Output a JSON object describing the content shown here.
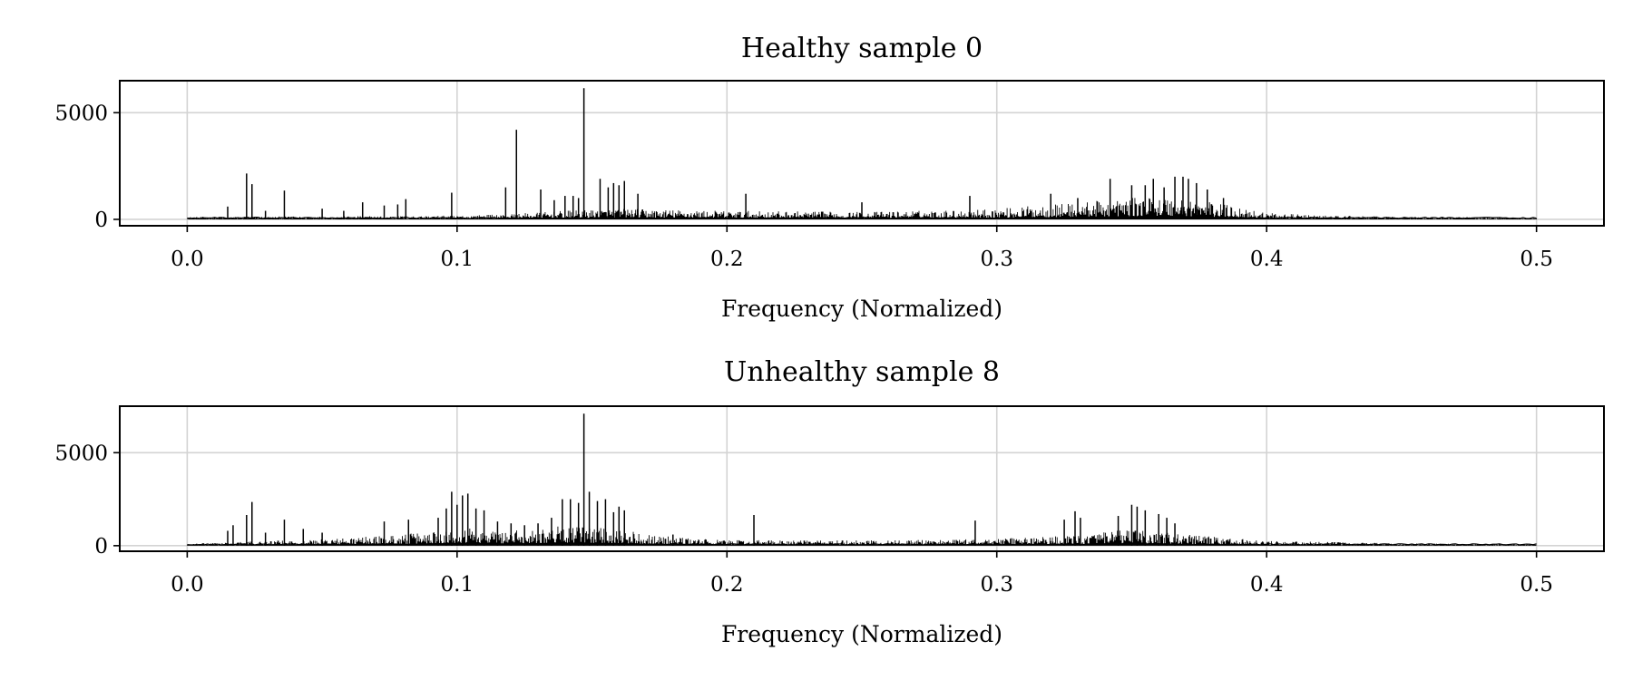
{
  "chart_data": [
    {
      "type": "line",
      "title": "Healthy sample 0",
      "xlabel": "Frequency (Normalized)",
      "ylabel": "",
      "xlim": [
        -0.025,
        0.525
      ],
      "ylim": [
        -300,
        6500
      ],
      "xticks": [
        "0.0",
        "0.1",
        "0.2",
        "0.3",
        "0.4",
        "0.5"
      ],
      "yticks": [
        "0",
        "5000"
      ],
      "grid": true,
      "color": "#000000",
      "spikes": [
        [
          0.015,
          600
        ],
        [
          0.022,
          2150
        ],
        [
          0.024,
          1650
        ],
        [
          0.029,
          400
        ],
        [
          0.036,
          1350
        ],
        [
          0.05,
          500
        ],
        [
          0.058,
          400
        ],
        [
          0.065,
          800
        ],
        [
          0.073,
          650
        ],
        [
          0.078,
          700
        ],
        [
          0.081,
          950
        ],
        [
          0.098,
          1250
        ],
        [
          0.118,
          1500
        ],
        [
          0.122,
          4200
        ],
        [
          0.131,
          1400
        ],
        [
          0.136,
          900
        ],
        [
          0.14,
          1100
        ],
        [
          0.143,
          1100
        ],
        [
          0.145,
          1000
        ],
        [
          0.147,
          6150
        ],
        [
          0.153,
          1900
        ],
        [
          0.156,
          1500
        ],
        [
          0.158,
          1700
        ],
        [
          0.16,
          1600
        ],
        [
          0.162,
          1800
        ],
        [
          0.167,
          1200
        ],
        [
          0.207,
          1200
        ],
        [
          0.25,
          800
        ],
        [
          0.29,
          1100
        ],
        [
          0.32,
          1200
        ],
        [
          0.33,
          1000
        ],
        [
          0.342,
          1900
        ],
        [
          0.35,
          1600
        ],
        [
          0.355,
          1600
        ],
        [
          0.358,
          1900
        ],
        [
          0.362,
          1500
        ],
        [
          0.366,
          2000
        ],
        [
          0.369,
          2000
        ],
        [
          0.371,
          1900
        ],
        [
          0.374,
          1700
        ],
        [
          0.378,
          1400
        ],
        [
          0.384,
          1000
        ]
      ],
      "envelope": {
        "x": [
          0.0,
          0.05,
          0.1,
          0.12,
          0.14,
          0.16,
          0.18,
          0.2,
          0.25,
          0.29,
          0.3,
          0.32,
          0.34,
          0.36,
          0.37,
          0.39,
          0.4,
          0.42,
          0.45,
          0.5
        ],
        "y": [
          120,
          140,
          180,
          250,
          400,
          500,
          450,
          400,
          350,
          450,
          500,
          700,
          900,
          1100,
          1000,
          600,
          300,
          180,
          120,
          80
        ]
      }
    },
    {
      "type": "line",
      "title": "Unhealthy sample 8",
      "xlabel": "Frequency (Normalized)",
      "ylabel": "",
      "xlim": [
        -0.025,
        0.525
      ],
      "ylim": [
        -300,
        7500
      ],
      "xticks": [
        "0.0",
        "0.1",
        "0.2",
        "0.3",
        "0.4",
        "0.5"
      ],
      "yticks": [
        "0",
        "5000"
      ],
      "grid": true,
      "color": "#000000",
      "spikes": [
        [
          0.015,
          800
        ],
        [
          0.017,
          1100
        ],
        [
          0.022,
          1650
        ],
        [
          0.024,
          2350
        ],
        [
          0.029,
          700
        ],
        [
          0.036,
          1400
        ],
        [
          0.043,
          900
        ],
        [
          0.05,
          700
        ],
        [
          0.073,
          1300
        ],
        [
          0.082,
          1400
        ],
        [
          0.093,
          1500
        ],
        [
          0.096,
          2000
        ],
        [
          0.098,
          2900
        ],
        [
          0.1,
          2200
        ],
        [
          0.102,
          2700
        ],
        [
          0.104,
          2800
        ],
        [
          0.107,
          2000
        ],
        [
          0.11,
          1900
        ],
        [
          0.115,
          1300
        ],
        [
          0.12,
          1200
        ],
        [
          0.125,
          1100
        ],
        [
          0.13,
          1200
        ],
        [
          0.135,
          1500
        ],
        [
          0.139,
          2500
        ],
        [
          0.142,
          2500
        ],
        [
          0.145,
          2300
        ],
        [
          0.147,
          7100
        ],
        [
          0.149,
          2900
        ],
        [
          0.152,
          2400
        ],
        [
          0.155,
          2500
        ],
        [
          0.158,
          1800
        ],
        [
          0.16,
          2100
        ],
        [
          0.162,
          1900
        ],
        [
          0.18,
          600
        ],
        [
          0.21,
          1650
        ],
        [
          0.292,
          1350
        ],
        [
          0.325,
          1400
        ],
        [
          0.329,
          1850
        ],
        [
          0.331,
          1500
        ],
        [
          0.345,
          1600
        ],
        [
          0.35,
          2200
        ],
        [
          0.352,
          2100
        ],
        [
          0.355,
          1900
        ],
        [
          0.36,
          1700
        ],
        [
          0.363,
          1500
        ],
        [
          0.366,
          1200
        ]
      ],
      "envelope": {
        "x": [
          0.0,
          0.02,
          0.05,
          0.08,
          0.1,
          0.12,
          0.14,
          0.16,
          0.18,
          0.2,
          0.25,
          0.29,
          0.31,
          0.33,
          0.35,
          0.37,
          0.4,
          0.45,
          0.5
        ],
        "y": [
          100,
          200,
          350,
          600,
          1000,
          800,
          1100,
          900,
          450,
          300,
          280,
          350,
          450,
          550,
          900,
          600,
          250,
          130,
          80
        ]
      }
    }
  ]
}
